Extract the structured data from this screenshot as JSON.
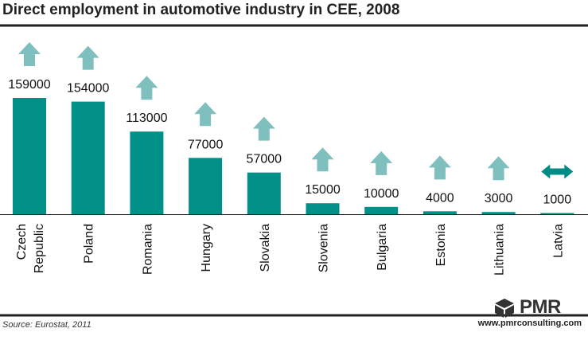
{
  "chart_data": {
    "type": "bar",
    "title": "Direct employment in automotive industry in CEE, 2008",
    "categories": [
      "Czech Republic",
      "Poland",
      "Romania",
      "Hungary",
      "Slovakia",
      "Slovenia",
      "Bulgaria",
      "Estonia",
      "Lithuania",
      "Latvia"
    ],
    "category_lines": [
      [
        "Czech",
        "Republic"
      ],
      [
        "Poland"
      ],
      [
        "Romania"
      ],
      [
        "Hungary"
      ],
      [
        "Slovakia"
      ],
      [
        "Slovenia"
      ],
      [
        "Bulgaria"
      ],
      [
        "Estonia"
      ],
      [
        "Lithuania"
      ],
      [
        "Latvia"
      ]
    ],
    "values": [
      159000,
      154000,
      113000,
      77000,
      57000,
      15000,
      10000,
      4000,
      3000,
      1000
    ],
    "value_labels": [
      "159000",
      "154000",
      "113000",
      "77000",
      "57000",
      "15000",
      "10000",
      "4000",
      "3000",
      "1000"
    ],
    "trend": [
      "up",
      "up",
      "up",
      "up",
      "up",
      "up",
      "up",
      "up",
      "up",
      "stable"
    ],
    "ylim": [
      0,
      175000
    ],
    "xlabel": "",
    "ylabel": "",
    "grid": false,
    "bar_color": "#009088",
    "arrow_color": "#7fbfbd",
    "stable_arrow_color": "#008c86"
  },
  "source": "Source: Eurostat, 2011",
  "logo": {
    "brand": "PMR",
    "url": "www.pmrconsulting.com",
    "icon": "pmr-cube-icon"
  }
}
